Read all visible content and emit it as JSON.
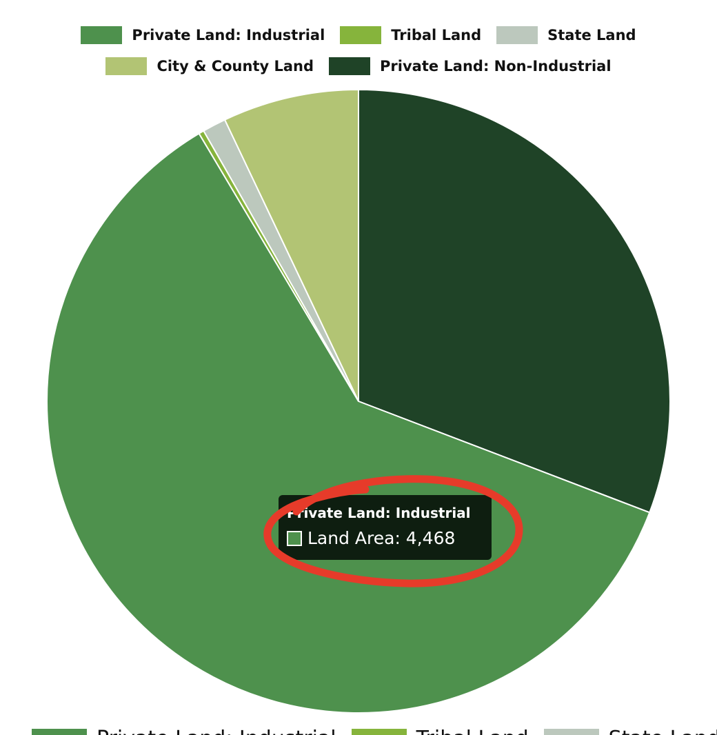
{
  "chart_data": {
    "type": "pie",
    "title": "",
    "series": [
      {
        "name": "Land Area",
        "values": [
          4468,
          20,
          90,
          520,
          2270
        ]
      }
    ],
    "categories": [
      "Private Land: Industrial",
      "Tribal Land",
      "State Land",
      "City & County Land",
      "Private Land: Non-Industrial"
    ],
    "colors": [
      "#4e914d",
      "#86b43c",
      "#bcc8bd",
      "#b2c474",
      "#1f4327"
    ],
    "legend_position": "top",
    "start_angle_degrees": 0,
    "slice_order_clockwise": [
      "Private Land: Non-Industrial",
      "Private Land: Industrial",
      "Tribal Land",
      "State Land",
      "City & County Land"
    ]
  },
  "legend": {
    "row1": [
      {
        "label": "Private Land: Industrial",
        "color": "#4e914d"
      },
      {
        "label": "Tribal Land",
        "color": "#86b43c"
      },
      {
        "label": "State Land",
        "color": "#bcc8bd"
      }
    ],
    "row2": [
      {
        "label": "City & County Land",
        "color": "#b2c474"
      },
      {
        "label": "Private Land: Non-Industrial",
        "color": "#1f4327"
      }
    ]
  },
  "tooltip": {
    "title": "Private Land: Industrial",
    "body": "Land Area: 4,468",
    "swatch_color": "#4e914d"
  },
  "annotation": {
    "color": "#e63b2a",
    "shape": "hand-drawn ellipse around tooltip"
  },
  "legend_bottom": {
    "items": [
      {
        "label": "Private Land: Industrial",
        "color": "#4e914d"
      },
      {
        "label": "Tribal Land",
        "color": "#86b43c"
      },
      {
        "label": "State Land",
        "color": "#bcc8bd"
      }
    ]
  }
}
